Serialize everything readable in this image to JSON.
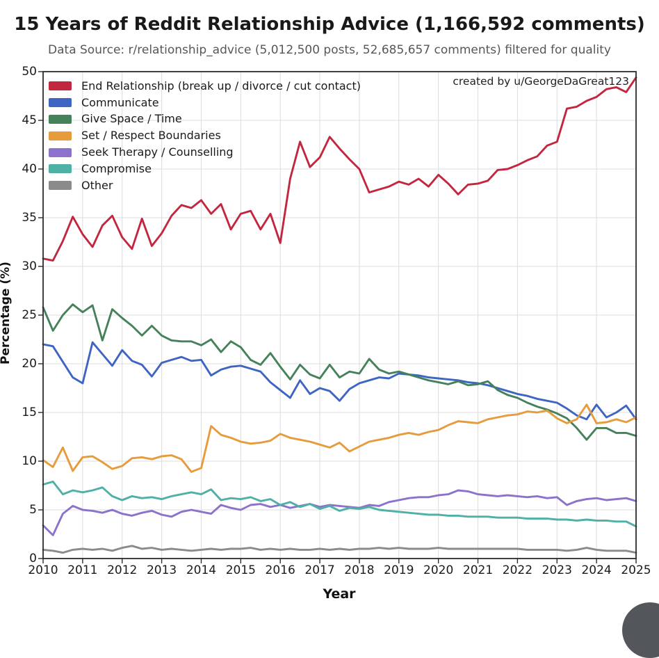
{
  "title": "15 Years of Reddit Relationship Advice (1,166,592 comments)",
  "subtitle": "Data Source: r/relationship_advice (5,012,500 posts, 52,685,657 comments) filtered for quality",
  "annotation": "created by u/GeorgeDaGreat123",
  "chart_data": {
    "type": "line",
    "title": "15 Years of Reddit Relationship Advice (1,166,592 comments)",
    "xlabel": "Year",
    "ylabel": "Percentage (%)",
    "xlim": [
      2010,
      2025
    ],
    "ylim": [
      0,
      50
    ],
    "x_ticks": [
      2010,
      2011,
      2012,
      2013,
      2014,
      2015,
      2016,
      2017,
      2018,
      2019,
      2020,
      2021,
      2022,
      2023,
      2024,
      2025
    ],
    "y_ticks": [
      0,
      5,
      10,
      15,
      20,
      25,
      30,
      35,
      40,
      45,
      50
    ],
    "grid": true,
    "legend_position": "upper left",
    "x_start": 2010,
    "x_step": 0.25,
    "series": [
      {
        "name": "End Relationship (break up / divorce / cut contact)",
        "color": "#c32740",
        "values": [
          30.8,
          30.6,
          32.6,
          35.1,
          33.3,
          32.0,
          34.2,
          35.2,
          33.0,
          31.8,
          34.9,
          32.1,
          33.4,
          35.2,
          36.3,
          36.0,
          36.8,
          35.4,
          36.4,
          33.8,
          35.4,
          35.7,
          33.8,
          35.4,
          32.4,
          39.0,
          42.8,
          40.2,
          41.2,
          43.3,
          42.1,
          41.0,
          40.0,
          37.6,
          37.9,
          38.2,
          38.7,
          38.4,
          39.0,
          38.2,
          39.4,
          38.5,
          37.4,
          38.4,
          38.5,
          38.8,
          39.9,
          40.0,
          40.4,
          40.9,
          41.3,
          42.4,
          42.8,
          46.2,
          46.4,
          47.0,
          47.4,
          48.2,
          48.4,
          47.9,
          49.4
        ]
      },
      {
        "name": "Communicate",
        "color": "#3e64c4",
        "values": [
          22.0,
          21.8,
          20.2,
          18.6,
          18.0,
          22.2,
          21.0,
          19.8,
          21.4,
          20.3,
          19.9,
          18.7,
          20.1,
          20.4,
          20.7,
          20.3,
          20.4,
          18.8,
          19.4,
          19.7,
          19.8,
          19.5,
          19.2,
          18.1,
          17.3,
          16.5,
          18.3,
          16.9,
          17.5,
          17.2,
          16.2,
          17.4,
          18.0,
          18.3,
          18.6,
          18.5,
          19.0,
          18.9,
          18.8,
          18.6,
          18.5,
          18.4,
          18.3,
          18.1,
          18.0,
          17.8,
          17.5,
          17.2,
          16.9,
          16.7,
          16.4,
          16.2,
          16.0,
          15.4,
          14.7,
          14.3,
          15.8,
          14.5,
          15.0,
          15.7,
          14.3
        ]
      },
      {
        "name": "Give Space / Time",
        "color": "#45815b",
        "values": [
          25.8,
          23.4,
          25.0,
          26.1,
          25.3,
          26.0,
          22.4,
          25.6,
          24.7,
          23.9,
          22.9,
          23.9,
          22.9,
          22.4,
          22.3,
          22.3,
          21.9,
          22.5,
          21.2,
          22.3,
          21.7,
          20.4,
          19.9,
          21.1,
          19.7,
          18.4,
          19.9,
          18.9,
          18.5,
          19.9,
          18.6,
          19.2,
          19.0,
          20.5,
          19.4,
          19.0,
          19.2,
          18.9,
          18.6,
          18.3,
          18.1,
          17.9,
          18.2,
          17.8,
          17.9,
          18.2,
          17.3,
          16.8,
          16.5,
          16.0,
          15.6,
          15.3,
          14.9,
          14.4,
          13.4,
          12.2,
          13.4,
          13.4,
          12.9,
          12.9,
          12.6
        ]
      },
      {
        "name": "Set / Respect Boundaries",
        "color": "#e69b3d",
        "values": [
          10.1,
          9.4,
          11.4,
          9.0,
          10.4,
          10.5,
          9.9,
          9.2,
          9.5,
          10.3,
          10.4,
          10.2,
          10.5,
          10.6,
          10.2,
          8.9,
          9.3,
          13.6,
          12.7,
          12.4,
          12.0,
          11.8,
          11.9,
          12.1,
          12.8,
          12.4,
          12.2,
          12.0,
          11.7,
          11.4,
          11.9,
          11.0,
          11.5,
          12.0,
          12.2,
          12.4,
          12.7,
          12.9,
          12.7,
          13.0,
          13.2,
          13.7,
          14.1,
          14.0,
          13.9,
          14.3,
          14.5,
          14.7,
          14.8,
          15.1,
          15.0,
          15.2,
          14.4,
          13.9,
          14.3,
          15.8,
          13.9,
          14.0,
          14.3,
          14.0,
          14.5
        ]
      },
      {
        "name": "Seek Therapy / Counselling",
        "color": "#8b72cc",
        "values": [
          3.4,
          2.4,
          4.6,
          5.4,
          5.0,
          4.9,
          4.7,
          5.0,
          4.6,
          4.4,
          4.7,
          4.9,
          4.5,
          4.3,
          4.8,
          5.0,
          4.8,
          4.6,
          5.5,
          5.2,
          5.0,
          5.5,
          5.6,
          5.3,
          5.5,
          5.2,
          5.4,
          5.6,
          5.3,
          5.5,
          5.4,
          5.3,
          5.2,
          5.5,
          5.4,
          5.8,
          6.0,
          6.2,
          6.3,
          6.3,
          6.5,
          6.6,
          7.0,
          6.9,
          6.6,
          6.5,
          6.4,
          6.5,
          6.4,
          6.3,
          6.4,
          6.2,
          6.3,
          5.5,
          5.9,
          6.1,
          6.2,
          6.0,
          6.1,
          6.2,
          5.9
        ]
      },
      {
        "name": "Compromise",
        "color": "#4fb0a5",
        "values": [
          7.6,
          7.9,
          6.6,
          7.0,
          6.8,
          7.0,
          7.3,
          6.4,
          6.0,
          6.4,
          6.2,
          6.3,
          6.1,
          6.4,
          6.6,
          6.8,
          6.6,
          7.1,
          6.0,
          6.2,
          6.1,
          6.3,
          5.9,
          6.1,
          5.5,
          5.8,
          5.3,
          5.6,
          5.1,
          5.4,
          4.9,
          5.2,
          5.1,
          5.3,
          5.0,
          4.9,
          4.8,
          4.7,
          4.6,
          4.5,
          4.5,
          4.4,
          4.4,
          4.3,
          4.3,
          4.3,
          4.2,
          4.2,
          4.2,
          4.1,
          4.1,
          4.1,
          4.0,
          4.0,
          3.9,
          4.0,
          3.9,
          3.9,
          3.8,
          3.8,
          3.3
        ]
      },
      {
        "name": "Other",
        "color": "#8b8b8b",
        "values": [
          0.9,
          0.8,
          0.6,
          0.9,
          1.0,
          0.9,
          1.0,
          0.8,
          1.1,
          1.3,
          1.0,
          1.1,
          0.9,
          1.0,
          0.9,
          0.8,
          0.9,
          1.0,
          0.9,
          1.0,
          1.0,
          1.1,
          0.9,
          1.0,
          0.9,
          1.0,
          0.9,
          0.9,
          1.0,
          0.9,
          1.0,
          0.9,
          1.0,
          1.0,
          1.1,
          1.0,
          1.1,
          1.0,
          1.0,
          1.0,
          1.1,
          1.0,
          1.0,
          1.0,
          1.0,
          1.0,
          1.0,
          1.0,
          1.0,
          0.9,
          0.9,
          0.9,
          0.9,
          0.8,
          0.9,
          1.1,
          0.9,
          0.8,
          0.8,
          0.8,
          0.6
        ]
      }
    ]
  },
  "colors": {
    "grid": "#dcdcdc",
    "spine": "#2b2b2b",
    "fab_button": "#53575c"
  }
}
